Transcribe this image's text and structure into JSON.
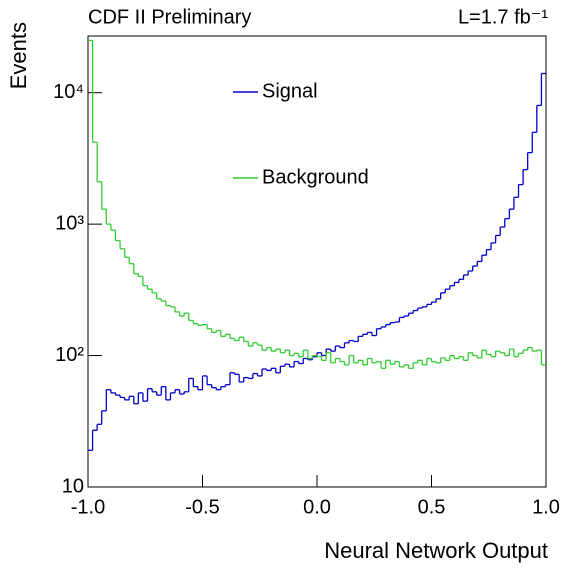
{
  "chart_data": {
    "type": "histogram",
    "title": "CDF II Preliminary",
    "subtitle": "L=1.7 fb⁻¹",
    "x_label": "Neural Network Output",
    "y_label": "Events",
    "log_y": true,
    "legend": "top",
    "xlim": [
      -1,
      1
    ],
    "ylim": [
      10,
      27000
    ],
    "xticks": [
      {
        "value": -1,
        "label": "-1.0"
      },
      {
        "value": -0.5,
        "label": "-0.5"
      },
      {
        "value": 0,
        "label": "0.0"
      },
      {
        "value": 0.5,
        "label": "0.5"
      },
      {
        "value": 1,
        "label": "1.0"
      }
    ],
    "yticks": [
      10,
      {
        "value": 100,
        "label": "10²"
      },
      {
        "value": 1000,
        "label": "10³"
      },
      {
        "value": 10000,
        "label": "10⁴"
      }
    ],
    "bins": [
      -1.0,
      -0.98,
      -0.96,
      -0.94,
      -0.92,
      -0.9,
      -0.88,
      -0.86,
      -0.84,
      -0.82,
      -0.8,
      -0.78,
      -0.76,
      -0.74,
      -0.72,
      -0.7,
      -0.68,
      -0.66,
      -0.64,
      -0.62,
      -0.6,
      -0.58,
      -0.56,
      -0.54,
      -0.52,
      -0.5,
      -0.48,
      -0.46,
      -0.44,
      -0.42,
      -0.4,
      -0.38,
      -0.36,
      -0.34,
      -0.32,
      -0.3,
      -0.28,
      -0.26,
      -0.24,
      -0.22,
      -0.2,
      -0.18,
      -0.16,
      -0.14,
      -0.12,
      -0.1,
      -0.08,
      -0.06,
      -0.04,
      -0.02,
      0.0,
      0.02,
      0.04,
      0.06,
      0.08,
      0.1,
      0.12,
      0.14,
      0.16,
      0.18,
      0.2,
      0.22,
      0.24,
      0.26,
      0.28,
      0.3,
      0.32,
      0.34,
      0.36,
      0.38,
      0.4,
      0.42,
      0.44,
      0.46,
      0.48,
      0.5,
      0.52,
      0.54,
      0.56,
      0.58,
      0.6,
      0.62,
      0.64,
      0.66,
      0.68,
      0.7,
      0.72,
      0.74,
      0.76,
      0.78,
      0.8,
      0.82,
      0.84,
      0.86,
      0.88,
      0.9,
      0.92,
      0.94,
      0.96,
      0.98,
      1.0
    ],
    "series": [
      {
        "name": "Signal",
        "color": "#0000cc",
        "values": [
          19,
          27,
          30,
          38,
          55,
          52,
          50,
          48,
          46,
          49,
          43,
          52,
          45,
          56,
          53,
          50,
          58,
          46,
          52,
          55,
          51,
          53,
          67,
          58,
          55,
          70,
          60,
          57,
          55,
          58,
          60,
          74,
          72,
          63,
          68,
          67,
          73,
          70,
          79,
          77,
          80,
          74,
          83,
          86,
          82,
          90,
          87,
          95,
          93,
          98,
          105,
          100,
          112,
          108,
          118,
          115,
          125,
          130,
          128,
          140,
          145,
          150,
          142,
          160,
          165,
          172,
          178,
          180,
          195,
          200,
          210,
          220,
          230,
          235,
          245,
          255,
          270,
          300,
          320,
          340,
          360,
          380,
          410,
          440,
          480,
          520,
          580,
          640,
          720,
          820,
          950,
          1100,
          1300,
          1600,
          2000,
          2600,
          3500,
          5000,
          8000,
          14000
        ]
      },
      {
        "name": "Background",
        "color": "#33cc33",
        "values": [
          25000,
          4200,
          2100,
          1300,
          1000,
          900,
          750,
          650,
          560,
          500,
          420,
          400,
          340,
          320,
          300,
          270,
          260,
          240,
          235,
          215,
          200,
          210,
          185,
          175,
          170,
          172,
          160,
          150,
          155,
          140,
          145,
          135,
          130,
          138,
          128,
          118,
          125,
          120,
          110,
          115,
          108,
          112,
          105,
          110,
          100,
          104,
          98,
          110,
          95,
          100,
          98,
          92,
          105,
          88,
          95,
          90,
          85,
          100,
          88,
          92,
          85,
          95,
          88,
          90,
          80,
          92,
          86,
          90,
          82,
          85,
          80,
          88,
          92,
          85,
          95,
          90,
          88,
          96,
          92,
          100,
          95,
          98,
          92,
          105,
          100,
          96,
          110,
          102,
          98,
          108,
          105,
          100,
          112,
          98,
          104,
          110,
          115,
          108,
          110,
          85
        ]
      }
    ]
  }
}
